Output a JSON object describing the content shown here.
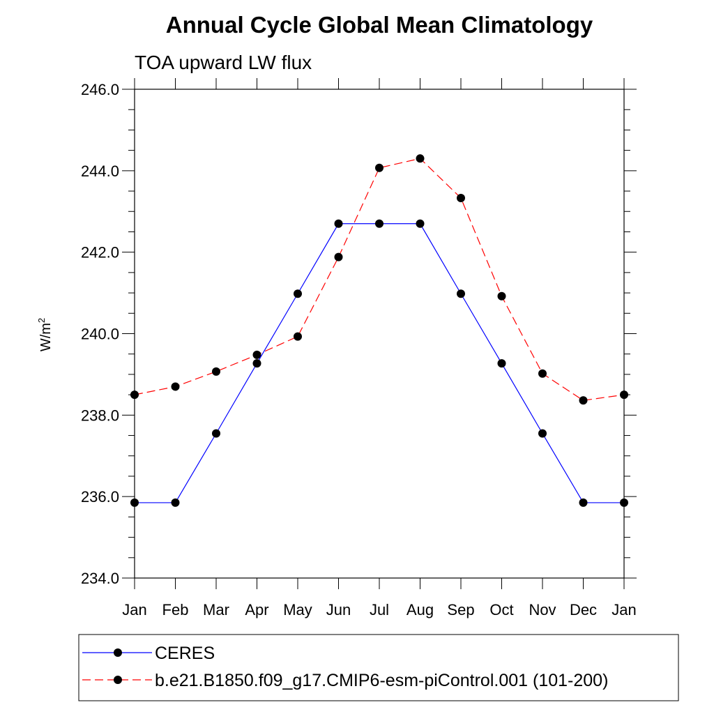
{
  "chart_data": {
    "type": "line",
    "title": "Annual Cycle Global Mean Climatology",
    "subtitle": "TOA upward LW flux",
    "ylabel": "W/m",
    "ylabel_sup": "2",
    "xlabel": "",
    "categories": [
      "Jan",
      "Feb",
      "Mar",
      "Apr",
      "May",
      "Jun",
      "Jul",
      "Aug",
      "Sep",
      "Oct",
      "Nov",
      "Dec",
      "Jan"
    ],
    "ylim": [
      234.0,
      246.0
    ],
    "yticks": [
      "234.0",
      "236.0",
      "238.0",
      "240.0",
      "242.0",
      "244.0",
      "246.0"
    ],
    "grid": false,
    "legend_position": "bottom",
    "series": [
      {
        "name": "CERES",
        "color": "#0000ff",
        "style": "solid",
        "values": [
          235.85,
          235.85,
          237.55,
          239.27,
          240.98,
          242.7,
          242.7,
          242.7,
          240.98,
          239.27,
          237.55,
          235.85,
          235.85
        ]
      },
      {
        "name": "b.e21.B1850.f09_g17.CMIP6-esm-piControl.001 (101-200)",
        "color": "#ff0000",
        "style": "dashed",
        "values": [
          238.5,
          238.7,
          239.07,
          239.48,
          239.93,
          241.88,
          244.07,
          244.3,
          243.33,
          240.92,
          239.02,
          238.36,
          238.5
        ]
      }
    ]
  }
}
